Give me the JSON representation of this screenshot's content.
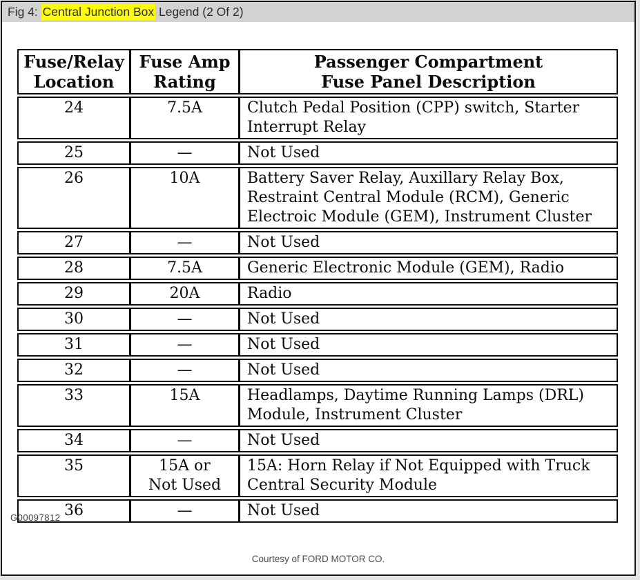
{
  "caption": {
    "prefix": "Fig 4: ",
    "highlight": "Central Junction Box",
    "suffix": " Legend (2 Of 2)"
  },
  "table": {
    "headers": [
      "Fuse/Relay\nLocation",
      "Fuse Amp\nRating",
      "Passenger Compartment\nFuse Panel Description"
    ],
    "rows": [
      {
        "location": "24",
        "rating": "7.5A",
        "description": "Clutch Pedal Position (CPP) switch, Starter Interrupt Relay"
      },
      {
        "location": "25",
        "rating": "—",
        "description": "Not Used"
      },
      {
        "location": "26",
        "rating": "10A",
        "description": "Battery Saver Relay, Auxillary Relay Box, Restraint Central Module (RCM), Generic Electroic Module (GEM), Instrument Cluster"
      },
      {
        "location": "27",
        "rating": "—",
        "description": "Not Used"
      },
      {
        "location": "28",
        "rating": "7.5A",
        "description": "Generic Electronic Module (GEM), Radio"
      },
      {
        "location": "29",
        "rating": "20A",
        "description": "Radio"
      },
      {
        "location": "30",
        "rating": "—",
        "description": "Not Used"
      },
      {
        "location": "31",
        "rating": "—",
        "description": "Not Used"
      },
      {
        "location": "32",
        "rating": "—",
        "description": "Not Used"
      },
      {
        "location": "33",
        "rating": "15A",
        "description": "Headlamps, Daytime Running Lamps (DRL) Module, Instrument Cluster"
      },
      {
        "location": "34",
        "rating": "—",
        "description": "Not Used"
      },
      {
        "location": "35",
        "rating": "15A or\nNot Used",
        "description": "15A: Horn Relay if Not Equipped with Truck Central Security Module"
      },
      {
        "location": "36",
        "rating": "—",
        "description": "Not Used"
      }
    ]
  },
  "footer": {
    "figure_id": "G00097812",
    "courtesy": "Courtesy of FORD MOTOR CO."
  },
  "colors": {
    "highlight": "#ffff00",
    "caption_bar": "#d2d2d2",
    "table_border": "#0b0b0b",
    "page_background": "#ffffff",
    "outer_background": "#e3e3e3"
  }
}
